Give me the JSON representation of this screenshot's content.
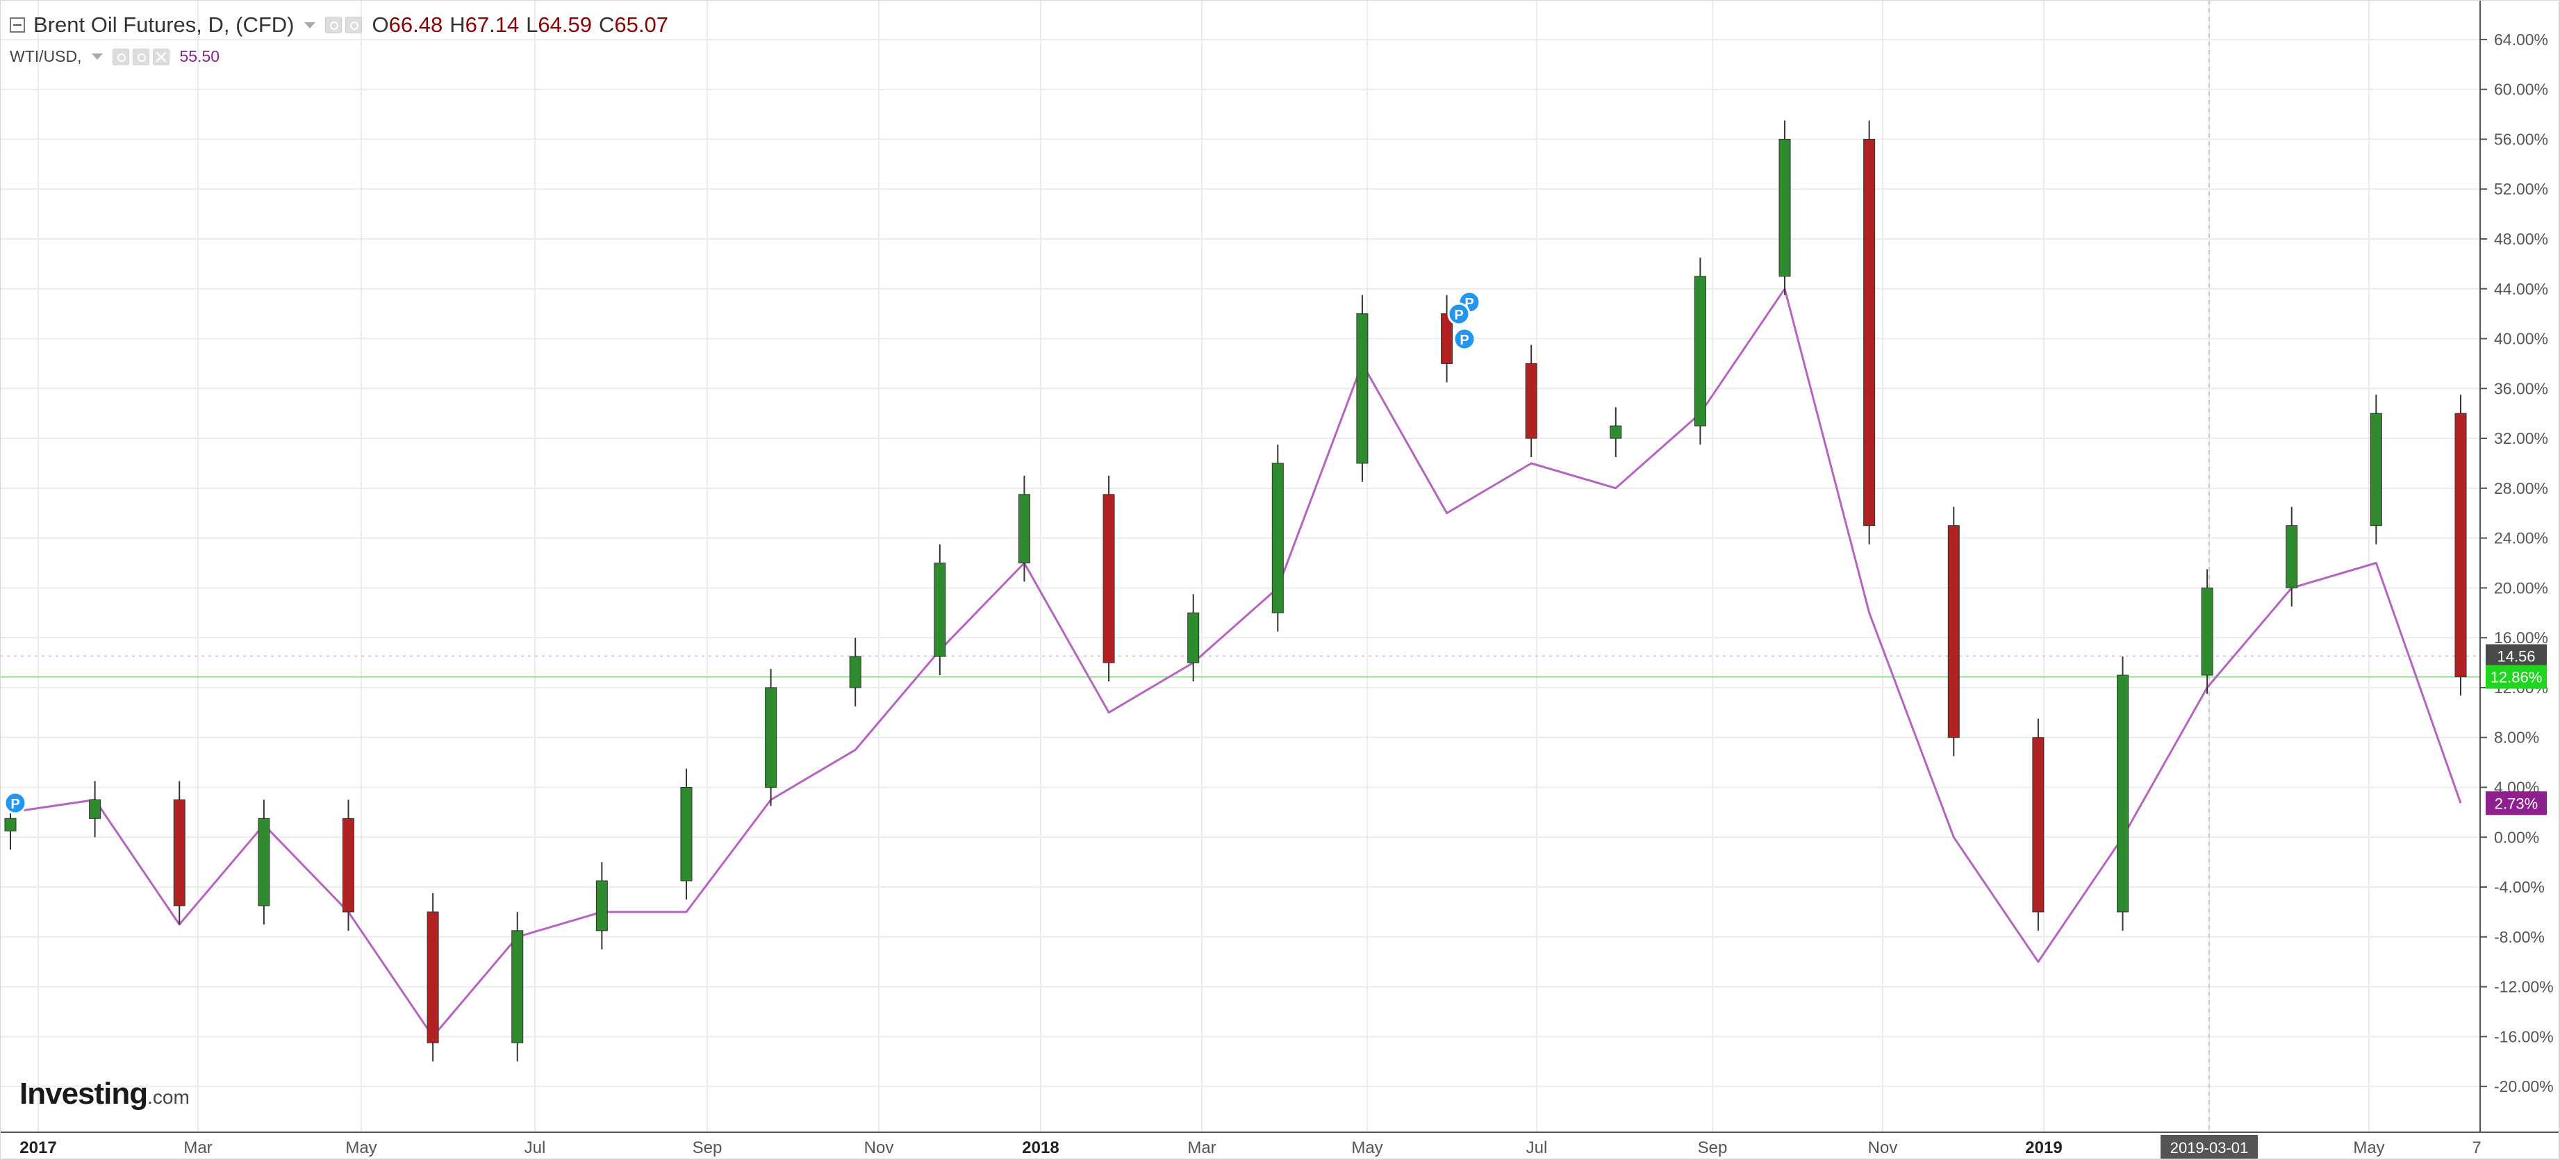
{
  "legend": {
    "main_title": "Brent Oil Futures, D, (CFD)",
    "ohlc": [
      {
        "label": "O",
        "value": "66.48"
      },
      {
        "label": "H",
        "value": "67.14"
      },
      {
        "label": "L",
        "value": "64.59"
      },
      {
        "label": "C",
        "value": "65.07"
      }
    ],
    "compare_symbol": "WTI/USD,",
    "compare_value": "55.50"
  },
  "logo": {
    "name": "Investing",
    "suffix": ".com"
  },
  "colors": {
    "up_candle": "#2e8b2e",
    "down_candle": "#b22222",
    "wti_line": "#b565c0",
    "grid": "#ececec",
    "price_line": "#8fe08f",
    "brent_badge": "#1fd61f",
    "wti_badge": "#8e1f8e",
    "price_badge": "#4a4a4a",
    "date_badge": "#555555",
    "marker": "#2196f3"
  },
  "chart_data": {
    "type": "line",
    "y_unit": "percent",
    "ylim": [
      -22,
      66
    ],
    "grid": true,
    "y_ticks": [
      "64.00%",
      "60.00%",
      "56.00%",
      "52.00%",
      "48.00%",
      "44.00%",
      "40.00%",
      "36.00%",
      "32.00%",
      "28.00%",
      "24.00%",
      "20.00%",
      "16.00%",
      "12.00%",
      "8.00%",
      "4.00%",
      "0.00%",
      "-4.00%",
      "-8.00%",
      "-12.00%",
      "-16.00%",
      "-20.00%"
    ],
    "x_ticks": [
      "2017",
      "Mar",
      "May",
      "Jul",
      "Sep",
      "Nov",
      "2018",
      "Mar",
      "May",
      "Jul",
      "Sep",
      "Nov",
      "2019",
      "Mar",
      "May",
      "7"
    ],
    "bold_x_ticks": [
      "2017",
      "2018",
      "2019"
    ],
    "hover_date_label": "2019-03-01",
    "badges": {
      "price": "14.56",
      "brent_change": "12.86%",
      "wti_change": "2.73%"
    },
    "series": [
      {
        "style": "candlestick",
        "x": [
          "2017-01",
          "2017-02",
          "2017-03",
          "2017-04",
          "2017-05",
          "2017-06",
          "2017-07",
          "2017-08",
          "2017-09",
          "2017-10",
          "2017-11",
          "2017-12",
          "2018-01",
          "2018-02",
          "2018-03",
          "2018-04",
          "2018-05",
          "2018-06",
          "2018-07",
          "2018-08",
          "2018-09",
          "2018-10",
          "2018-11",
          "2018-12",
          "2019-01",
          "2019-02",
          "2019-03",
          "2019-04",
          "2019-05",
          "2019-06"
        ],
        "values": [
          1.5,
          3.0,
          -5.5,
          1.5,
          -6.0,
          -16.5,
          -7.5,
          -3.5,
          4.0,
          12.0,
          14.5,
          22.0,
          27.5,
          14.0,
          18.0,
          30.0,
          42.0,
          38.0,
          32.0,
          33.0,
          45.0,
          56.0,
          25.0,
          8.0,
          -6.0,
          13.0,
          20.0,
          25.0,
          34.0,
          12.86
        ]
      },
      {
        "name": "WTI/USD",
        "style": "line",
        "x": [
          "2017-01",
          "2017-02",
          "2017-03",
          "2017-04",
          "2017-05",
          "2017-06",
          "2017-07",
          "2017-08",
          "2017-09",
          "2017-10",
          "2017-11",
          "2017-12",
          "2018-01",
          "2018-02",
          "2018-03",
          "2018-04",
          "2018-05",
          "2018-06",
          "2018-07",
          "2018-08",
          "2018-09",
          "2018-10",
          "2018-11",
          "2018-12",
          "2019-01",
          "2019-02",
          "2019-03",
          "2019-04",
          "2019-05",
          "2019-06"
        ],
        "values": [
          2.0,
          3.0,
          -7.0,
          1.0,
          -6.0,
          -16.0,
          -8.0,
          -6.0,
          -6.0,
          3.0,
          7.0,
          15.0,
          22.0,
          10.0,
          14.0,
          20.0,
          38.0,
          26.0,
          30.0,
          28.0,
          34.0,
          44.0,
          18.0,
          0.0,
          -10.0,
          0.0,
          12.0,
          20.0,
          22.0,
          2.73
        ]
      }
    ],
    "markers": [
      {
        "x": "2017-01",
        "label": "P"
      },
      {
        "x": "2018-06",
        "label": "P"
      },
      {
        "x": "2018-06",
        "label": "P"
      },
      {
        "x": "2018-06",
        "label": "P"
      }
    ]
  }
}
